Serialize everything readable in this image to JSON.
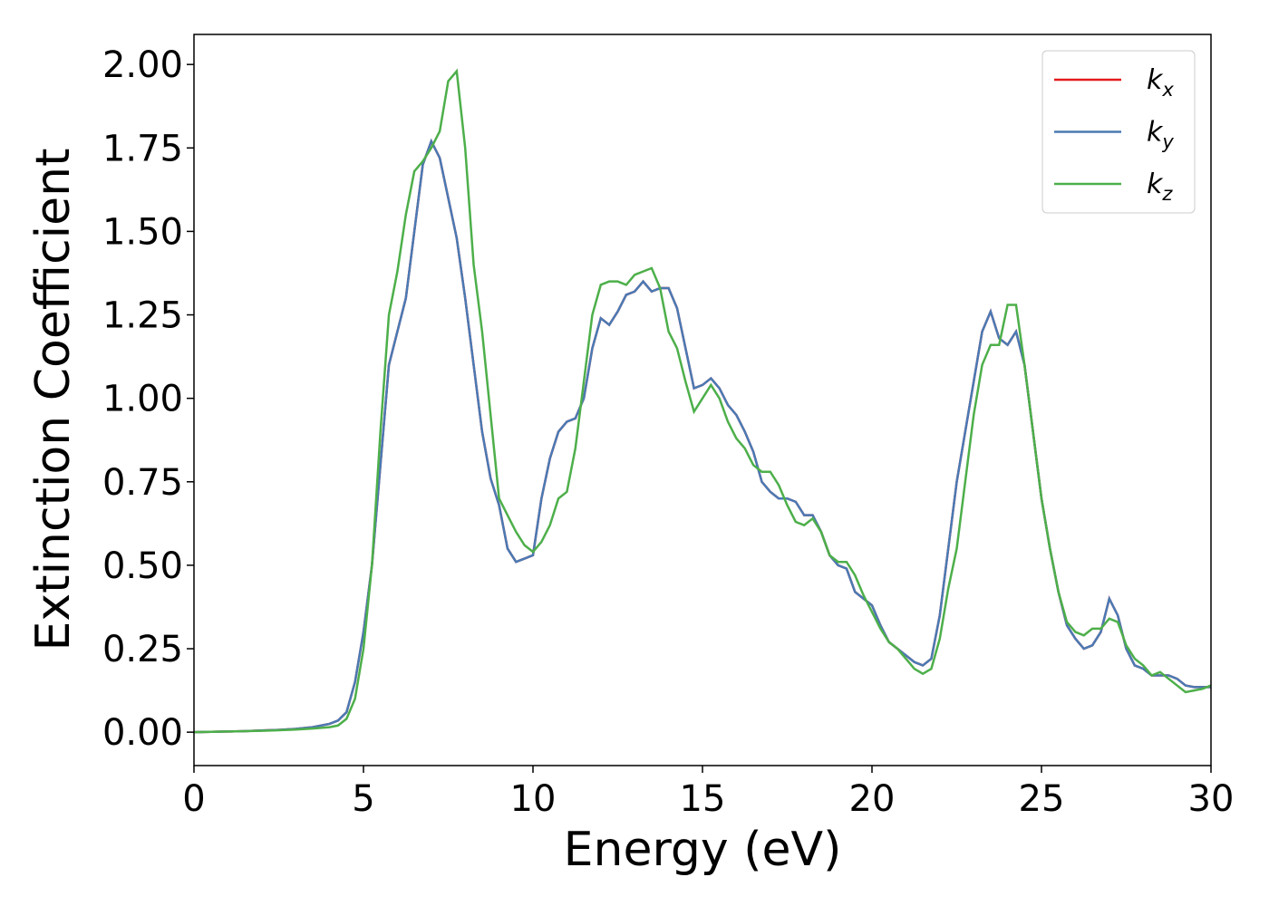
{
  "chart_data": {
    "type": "line",
    "xlabel": "Energy (eV)",
    "ylabel": "Extinction Coefficient",
    "x": [
      0,
      0.5,
      1,
      1.5,
      2,
      2.5,
      3,
      3.5,
      4,
      4.25,
      4.5,
      4.75,
      5,
      5.25,
      5.5,
      5.75,
      6,
      6.25,
      6.5,
      6.75,
      7,
      7.25,
      7.5,
      7.75,
      8,
      8.25,
      8.5,
      8.75,
      9,
      9.25,
      9.5,
      9.75,
      10,
      10.25,
      10.5,
      10.75,
      11,
      11.25,
      11.5,
      11.75,
      12,
      12.25,
      12.5,
      12.75,
      13,
      13.25,
      13.5,
      13.75,
      14,
      14.25,
      14.5,
      14.75,
      15,
      15.25,
      15.5,
      15.75,
      16,
      16.25,
      16.5,
      16.75,
      17,
      17.25,
      17.5,
      17.75,
      18,
      18.25,
      18.5,
      18.75,
      19,
      19.25,
      19.5,
      19.75,
      20,
      20.25,
      20.5,
      20.75,
      21,
      21.25,
      21.5,
      21.75,
      22,
      22.25,
      22.5,
      22.75,
      23,
      23.25,
      23.5,
      23.75,
      24,
      24.25,
      24.5,
      24.75,
      25,
      25.25,
      25.5,
      25.75,
      26,
      26.25,
      26.5,
      26.75,
      27,
      27.25,
      27.5,
      27.75,
      28,
      28.25,
      28.5,
      28.75,
      29,
      29.25,
      29.5,
      29.75,
      30
    ],
    "series": [
      {
        "name": "kx",
        "color": "#e41a1c",
        "values": [
          0,
          0.001,
          0.002,
          0.003,
          0.005,
          0.007,
          0.01,
          0.015,
          0.025,
          0.035,
          0.06,
          0.15,
          0.3,
          0.5,
          0.8,
          1.1,
          1.2,
          1.3,
          1.5,
          1.7,
          1.77,
          1.72,
          1.6,
          1.48,
          1.3,
          1.1,
          0.9,
          0.76,
          0.68,
          0.55,
          0.51,
          0.52,
          0.53,
          0.7,
          0.82,
          0.9,
          0.93,
          0.94,
          1.0,
          1.15,
          1.24,
          1.22,
          1.26,
          1.31,
          1.32,
          1.35,
          1.32,
          1.33,
          1.33,
          1.27,
          1.15,
          1.03,
          1.04,
          1.06,
          1.03,
          0.98,
          0.95,
          0.9,
          0.84,
          0.75,
          0.72,
          0.7,
          0.7,
          0.69,
          0.65,
          0.65,
          0.6,
          0.53,
          0.5,
          0.49,
          0.42,
          0.4,
          0.38,
          0.32,
          0.27,
          0.25,
          0.23,
          0.21,
          0.2,
          0.22,
          0.35,
          0.55,
          0.75,
          0.9,
          1.05,
          1.2,
          1.26,
          1.18,
          1.16,
          1.2,
          1.1,
          0.9,
          0.7,
          0.55,
          0.42,
          0.32,
          0.28,
          0.25,
          0.26,
          0.3,
          0.4,
          0.35,
          0.25,
          0.2,
          0.19,
          0.17,
          0.17,
          0.17,
          0.16,
          0.14,
          0.135,
          0.135,
          0.135
        ]
      },
      {
        "name": "ky",
        "color": "#4a7ab4",
        "values": [
          0,
          0.001,
          0.002,
          0.003,
          0.005,
          0.007,
          0.01,
          0.015,
          0.025,
          0.035,
          0.06,
          0.15,
          0.3,
          0.5,
          0.8,
          1.1,
          1.2,
          1.3,
          1.5,
          1.7,
          1.77,
          1.72,
          1.6,
          1.48,
          1.3,
          1.1,
          0.9,
          0.76,
          0.68,
          0.55,
          0.51,
          0.52,
          0.53,
          0.7,
          0.82,
          0.9,
          0.93,
          0.94,
          1.0,
          1.15,
          1.24,
          1.22,
          1.26,
          1.31,
          1.32,
          1.35,
          1.32,
          1.33,
          1.33,
          1.27,
          1.15,
          1.03,
          1.04,
          1.06,
          1.03,
          0.98,
          0.95,
          0.9,
          0.84,
          0.75,
          0.72,
          0.7,
          0.7,
          0.69,
          0.65,
          0.65,
          0.6,
          0.53,
          0.5,
          0.49,
          0.42,
          0.4,
          0.38,
          0.32,
          0.27,
          0.25,
          0.23,
          0.21,
          0.2,
          0.22,
          0.35,
          0.55,
          0.75,
          0.9,
          1.05,
          1.2,
          1.26,
          1.18,
          1.16,
          1.2,
          1.1,
          0.9,
          0.7,
          0.55,
          0.42,
          0.32,
          0.28,
          0.25,
          0.26,
          0.3,
          0.4,
          0.35,
          0.25,
          0.2,
          0.19,
          0.17,
          0.17,
          0.17,
          0.16,
          0.14,
          0.135,
          0.135,
          0.135
        ]
      },
      {
        "name": "kz",
        "color": "#4daf4a",
        "values": [
          0,
          0.001,
          0.002,
          0.003,
          0.004,
          0.006,
          0.008,
          0.011,
          0.015,
          0.02,
          0.04,
          0.1,
          0.25,
          0.5,
          0.9,
          1.25,
          1.38,
          1.55,
          1.68,
          1.71,
          1.75,
          1.8,
          1.95,
          1.98,
          1.75,
          1.4,
          1.2,
          0.95,
          0.7,
          0.65,
          0.6,
          0.56,
          0.54,
          0.57,
          0.62,
          0.7,
          0.72,
          0.85,
          1.05,
          1.25,
          1.34,
          1.35,
          1.35,
          1.34,
          1.37,
          1.38,
          1.39,
          1.33,
          1.2,
          1.15,
          1.05,
          0.96,
          1.0,
          1.04,
          1.0,
          0.93,
          0.88,
          0.85,
          0.8,
          0.78,
          0.78,
          0.74,
          0.68,
          0.63,
          0.62,
          0.64,
          0.6,
          0.53,
          0.51,
          0.51,
          0.47,
          0.41,
          0.36,
          0.31,
          0.27,
          0.25,
          0.22,
          0.19,
          0.175,
          0.19,
          0.28,
          0.43,
          0.55,
          0.75,
          0.95,
          1.1,
          1.16,
          1.16,
          1.28,
          1.28,
          1.1,
          0.9,
          0.7,
          0.55,
          0.42,
          0.33,
          0.3,
          0.29,
          0.31,
          0.31,
          0.34,
          0.33,
          0.26,
          0.22,
          0.2,
          0.17,
          0.18,
          0.16,
          0.14,
          0.12,
          0.125,
          0.13,
          0.14
        ]
      }
    ],
    "xlim": [
      0,
      30
    ],
    "xticks": [
      0,
      5,
      10,
      15,
      20,
      25,
      30
    ],
    "ylim": [
      -0.1,
      2.09
    ],
    "yticks": [
      {
        "value": 0,
        "label": "0.00"
      },
      {
        "value": 0.25,
        "label": "0.25"
      },
      {
        "value": 0.5,
        "label": "0.50"
      },
      {
        "value": 0.75,
        "label": "0.75"
      },
      {
        "value": 1,
        "label": "1.00"
      },
      {
        "value": 1.25,
        "label": "1.25"
      },
      {
        "value": 1.5,
        "label": "1.50"
      },
      {
        "value": 1.75,
        "label": "1.75"
      },
      {
        "value": 2,
        "label": "2.00"
      }
    ],
    "grid": false,
    "legend": "upper right"
  }
}
